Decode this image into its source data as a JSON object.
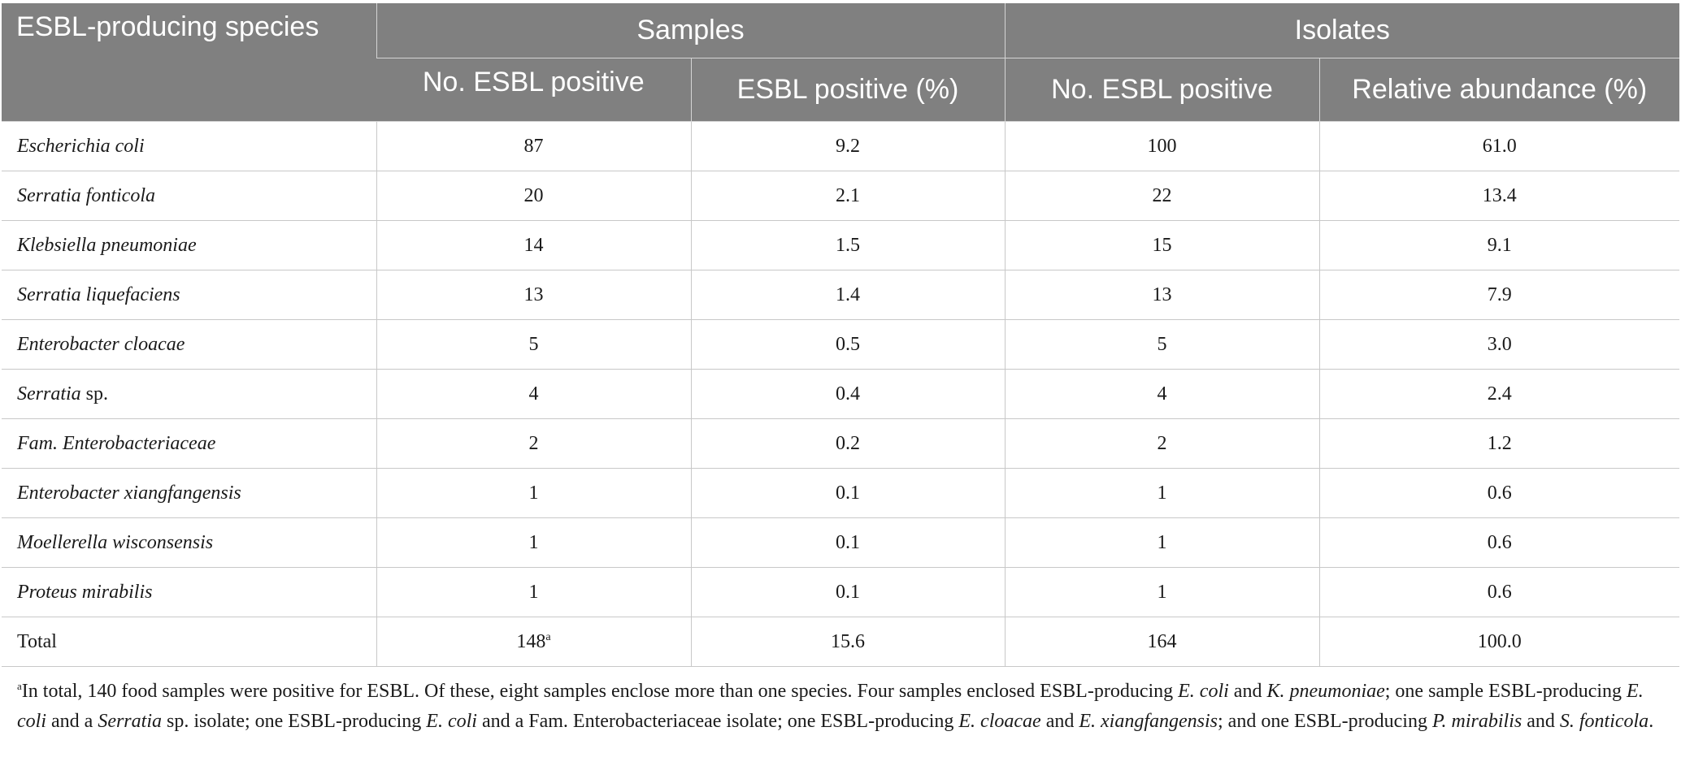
{
  "header": {
    "species_col": "ESBL-producing species",
    "groups": [
      "Samples",
      "Isolates"
    ],
    "subcols": [
      "No. ESBL positive",
      "ESBL positive (%)",
      "No. ESBL positive",
      "Relative abundance (%)"
    ]
  },
  "rows": [
    {
      "name_italic": "Escherichia coli",
      "name_plain": "",
      "samples_no": "87",
      "samples_pct": "9.2",
      "isolates_no": "100",
      "rel_abund": "61.0"
    },
    {
      "name_italic": "Serratia fonticola",
      "name_plain": "",
      "samples_no": "20",
      "samples_pct": "2.1",
      "isolates_no": "22",
      "rel_abund": "13.4"
    },
    {
      "name_italic": "Klebsiella pneumoniae",
      "name_plain": "",
      "samples_no": "14",
      "samples_pct": "1.5",
      "isolates_no": "15",
      "rel_abund": "9.1"
    },
    {
      "name_italic": "Serratia liquefaciens",
      "name_plain": "",
      "samples_no": "13",
      "samples_pct": "1.4",
      "isolates_no": "13",
      "rel_abund": "7.9"
    },
    {
      "name_italic": "Enterobacter cloacae",
      "name_plain": "",
      "samples_no": "5",
      "samples_pct": "0.5",
      "isolates_no": "5",
      "rel_abund": "3.0"
    },
    {
      "name_italic": "Serratia",
      "name_plain": " sp.",
      "samples_no": "4",
      "samples_pct": "0.4",
      "isolates_no": "4",
      "rel_abund": "2.4"
    },
    {
      "name_italic": "Fam. Enterobacteriaceae",
      "name_plain": "",
      "samples_no": "2",
      "samples_pct": "0.2",
      "isolates_no": "2",
      "rel_abund": "1.2"
    },
    {
      "name_italic": "Enterobacter xiangfangensis",
      "name_plain": "",
      "samples_no": "1",
      "samples_pct": "0.1",
      "isolates_no": "1",
      "rel_abund": "0.6"
    },
    {
      "name_italic": "Moellerella wisconsensis",
      "name_plain": "",
      "samples_no": "1",
      "samples_pct": "0.1",
      "isolates_no": "1",
      "rel_abund": "0.6"
    },
    {
      "name_italic": "Proteus mirabilis",
      "name_plain": "",
      "samples_no": "1",
      "samples_pct": "0.1",
      "isolates_no": "1",
      "rel_abund": "0.6"
    }
  ],
  "total": {
    "label": "Total",
    "samples_no": "148",
    "samples_no_sup": "a",
    "samples_pct": "15.6",
    "isolates_no": "164",
    "rel_abund": "100.0"
  },
  "footnote": {
    "marker": "a",
    "segments": [
      {
        "text": "In total, 140 food samples were positive for ESBL. Of these, eight samples enclose more than one species. Four samples enclosed ESBL-producing ",
        "italic": false
      },
      {
        "text": "E. coli",
        "italic": true
      },
      {
        "text": " and ",
        "italic": false
      },
      {
        "text": "K. pneumoniae",
        "italic": true
      },
      {
        "text": "; one sample ESBL-producing ",
        "italic": false
      },
      {
        "text": "E. coli",
        "italic": true
      },
      {
        "text": " and a ",
        "italic": false
      },
      {
        "text": "Serratia",
        "italic": true
      },
      {
        "text": " sp. isolate; one ESBL-producing ",
        "italic": false
      },
      {
        "text": "E. coli",
        "italic": true
      },
      {
        "text": " and a Fam. Enterobacteriaceae isolate; one ESBL-producing ",
        "italic": false
      },
      {
        "text": "E. cloacae",
        "italic": true
      },
      {
        "text": " and ",
        "italic": false
      },
      {
        "text": "E. xiangfangensis",
        "italic": true
      },
      {
        "text": "; and one ESBL-producing ",
        "italic": false
      },
      {
        "text": "P. mirabilis",
        "italic": true
      },
      {
        "text": " and ",
        "italic": false
      },
      {
        "text": "S. fonticola",
        "italic": true
      },
      {
        "text": ".",
        "italic": false
      }
    ]
  }
}
